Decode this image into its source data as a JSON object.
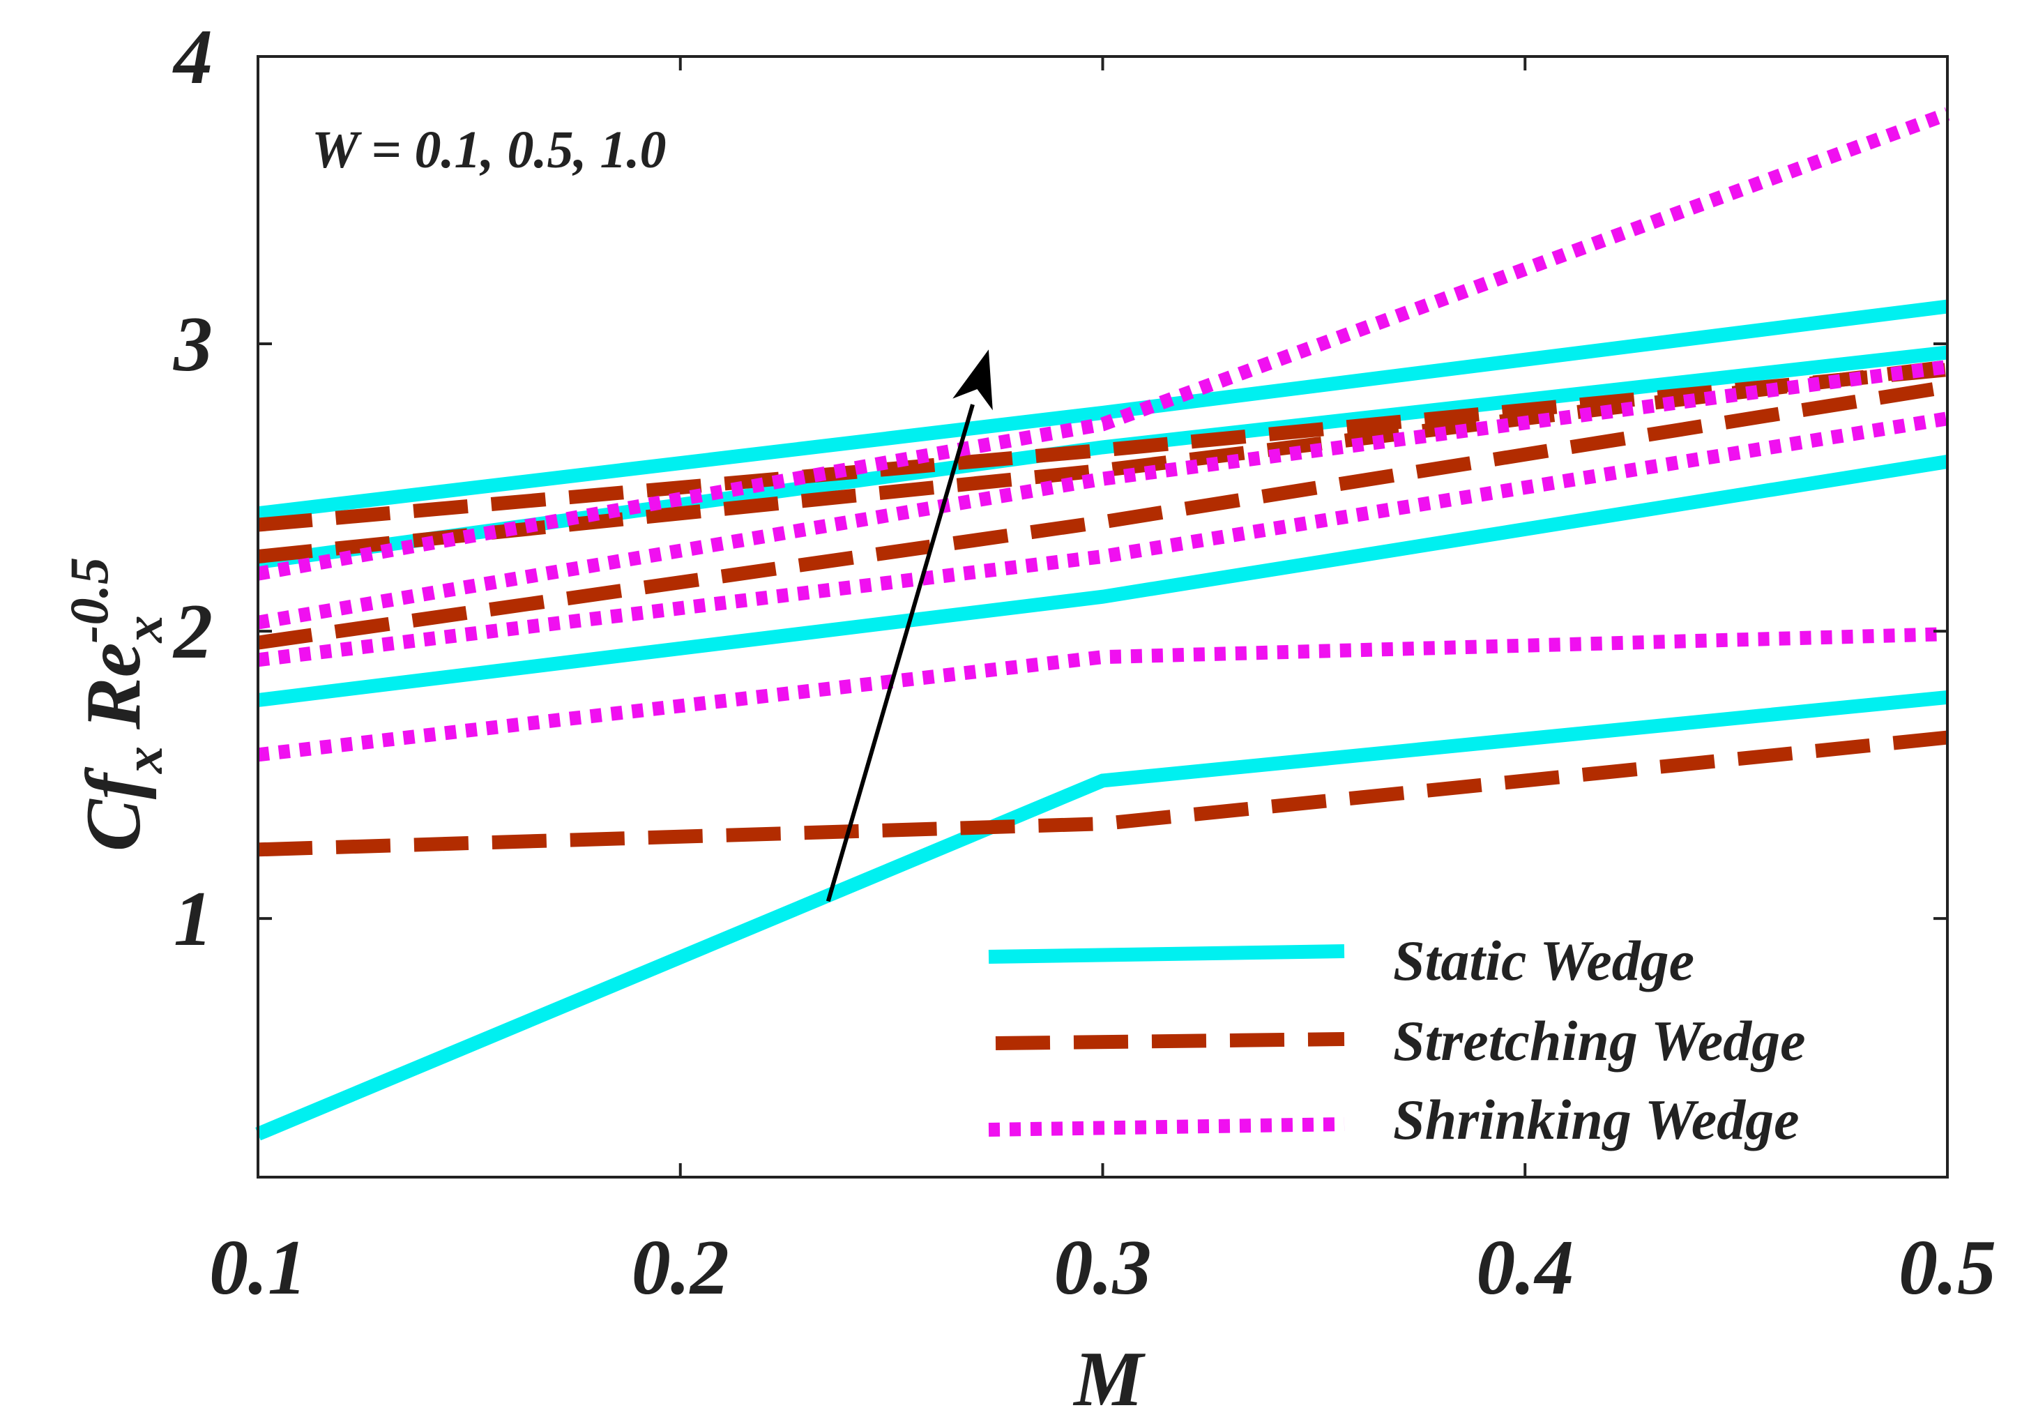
{
  "chart_data": {
    "type": "line",
    "xlabel": "M",
    "ylabel": {
      "main": "Cf",
      "sub1": "x",
      "main2": "Re",
      "sub2": "x",
      "sup": "-0.5"
    },
    "xlim": [
      0.1,
      0.5
    ],
    "ylim": [
      0.1,
      4
    ],
    "xticks": [
      0.1,
      0.2,
      0.3,
      0.4,
      0.5
    ],
    "xtick_labels": [
      "0.1",
      "0.2",
      "0.3",
      "0.4",
      "0.5"
    ],
    "yticks": [
      1,
      2,
      3,
      4
    ],
    "ytick_labels": [
      "1",
      "2",
      "3",
      "4"
    ],
    "grid": false,
    "annotation": "W = 0.1, 0.5, 1.0",
    "arrow": {
      "from": [
        0.235,
        1.06
      ],
      "to": [
        0.273,
        2.98
      ]
    },
    "legend_position": "bottom-right",
    "legend": [
      {
        "label": "Static Wedge",
        "style": "solid"
      },
      {
        "label": "Stretching Wedge",
        "style": "dashed"
      },
      {
        "label": "Shrinking Wedge",
        "style": "dotted"
      }
    ],
    "colors": {
      "static": "#00f0f0",
      "stretching": "#b22c00",
      "shrinking": "#f010f0",
      "axis": "#222222",
      "arrow": "#000000"
    },
    "series": [
      {
        "group": "Static Wedge",
        "style": "solid",
        "x": [
          0.1,
          0.3,
          0.5
        ],
        "y": [
          0.25,
          1.48,
          1.77
        ]
      },
      {
        "group": "Static Wedge",
        "style": "solid",
        "x": [
          0.1,
          0.3,
          0.5
        ],
        "y": [
          1.76,
          2.12,
          2.59
        ]
      },
      {
        "group": "Static Wedge",
        "style": "solid",
        "x": [
          0.1,
          0.3,
          0.5
        ],
        "y": [
          2.24,
          2.64,
          2.97
        ]
      },
      {
        "group": "Static Wedge",
        "style": "solid",
        "x": [
          0.1,
          0.3,
          0.5
        ],
        "y": [
          2.41,
          2.76,
          3.13
        ]
      },
      {
        "group": "Stretching Wedge",
        "style": "dashed",
        "x": [
          0.1,
          0.3,
          0.5
        ],
        "y": [
          1.24,
          1.33,
          1.63
        ]
      },
      {
        "group": "Stretching Wedge",
        "style": "dashed",
        "x": [
          0.1,
          0.3,
          0.5
        ],
        "y": [
          1.96,
          2.38,
          2.85
        ]
      },
      {
        "group": "Stretching Wedge",
        "style": "dashed",
        "x": [
          0.1,
          0.3,
          0.5
        ],
        "y": [
          2.26,
          2.56,
          2.92
        ]
      },
      {
        "group": "Stretching Wedge",
        "style": "dashed",
        "x": [
          0.1,
          0.3,
          0.5
        ],
        "y": [
          2.37,
          2.63,
          2.91
        ]
      },
      {
        "group": "Shrinking Wedge",
        "style": "dotted",
        "x": [
          0.1,
          0.3,
          0.5
        ],
        "y": [
          1.57,
          1.91,
          1.99
        ]
      },
      {
        "group": "Shrinking Wedge",
        "style": "dotted",
        "x": [
          0.1,
          0.3,
          0.5
        ],
        "y": [
          1.9,
          2.26,
          2.74
        ]
      },
      {
        "group": "Shrinking Wedge",
        "style": "dotted",
        "x": [
          0.1,
          0.3,
          0.5
        ],
        "y": [
          2.03,
          2.53,
          2.92
        ]
      },
      {
        "group": "Shrinking Wedge",
        "style": "dotted",
        "x": [
          0.1,
          0.3,
          0.5
        ],
        "y": [
          2.2,
          2.72,
          3.8
        ]
      }
    ]
  }
}
